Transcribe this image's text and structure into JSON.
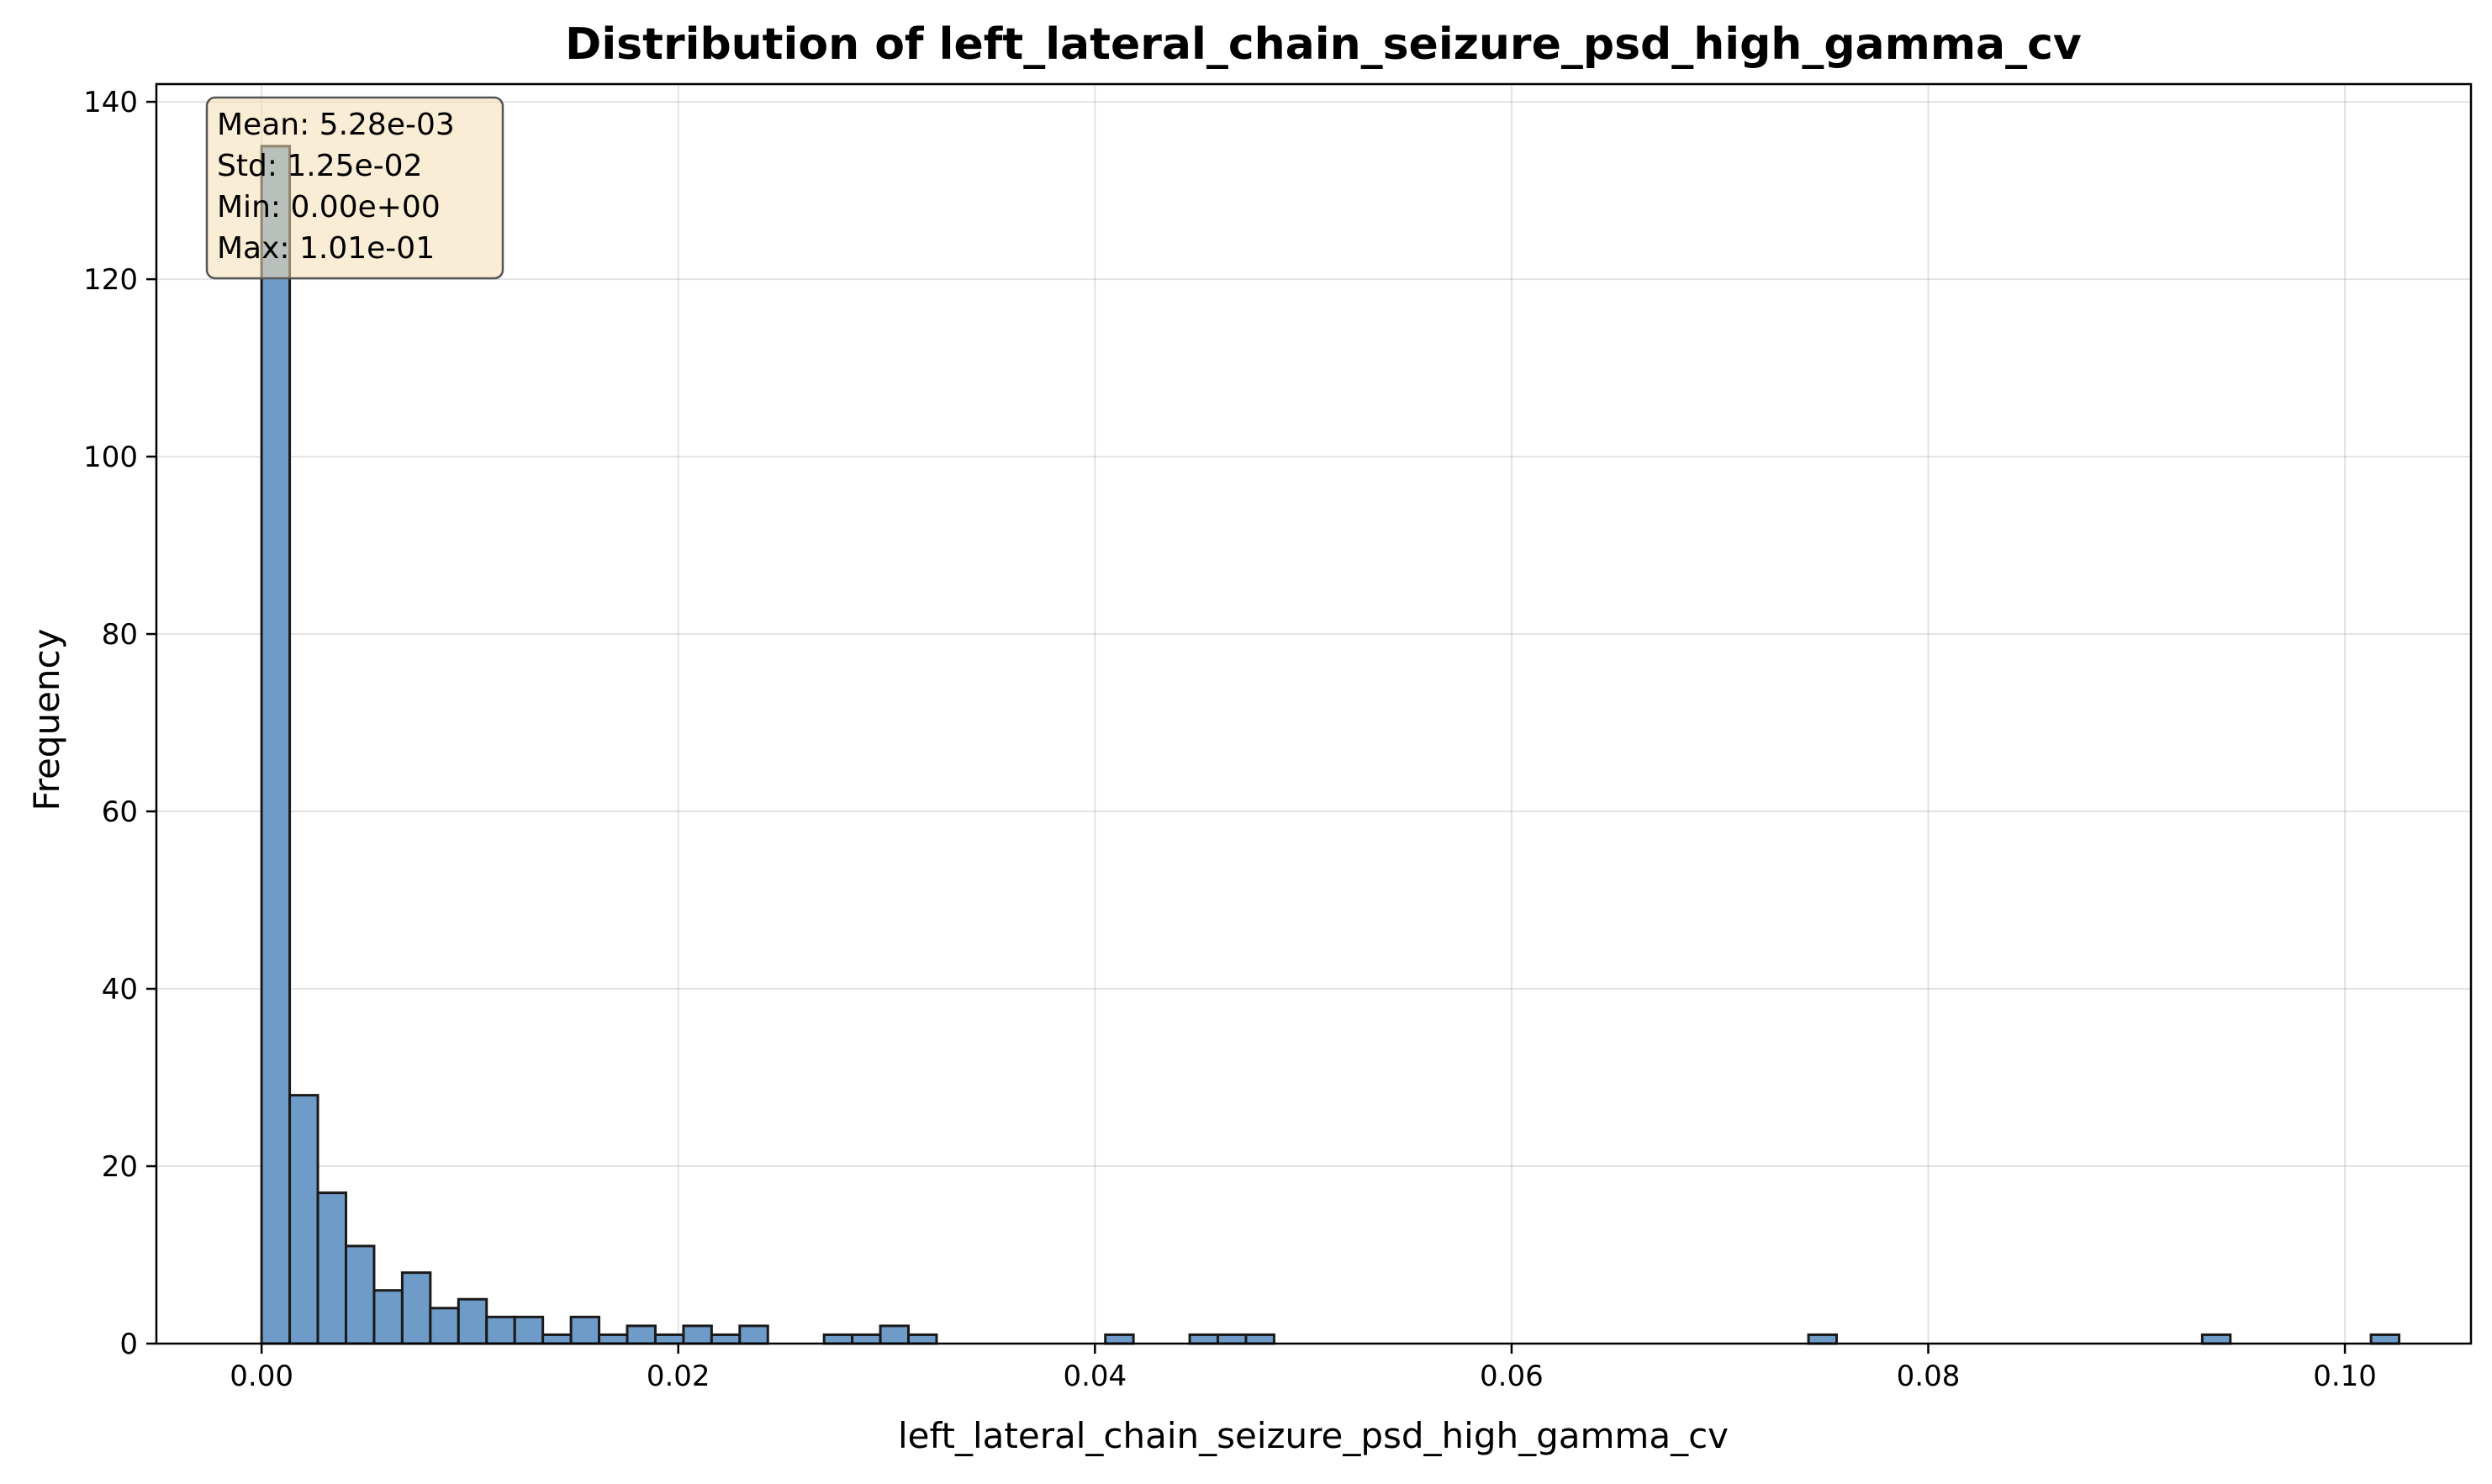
{
  "chart_data": {
    "type": "bar",
    "title": "Distribution of left_lateral_chain_seizure_psd_high_gamma_cv",
    "xlabel": "left_lateral_chain_seizure_psd_high_gamma_cv",
    "ylabel": "Frequency",
    "xlim": [
      -0.00505,
      0.10605
    ],
    "ylim": [
      0,
      142
    ],
    "xticks": [
      0.0,
      0.02,
      0.04,
      0.06,
      0.08,
      0.1
    ],
    "xtick_labels": [
      "0.00",
      "0.02",
      "0.04",
      "0.06",
      "0.08",
      "0.10"
    ],
    "yticks": [
      0,
      20,
      40,
      60,
      80,
      100,
      120,
      140
    ],
    "ytick_labels": [
      "0",
      "20",
      "40",
      "60",
      "80",
      "100",
      "120",
      "140"
    ],
    "bin_start": 0.0,
    "bin_width": 0.00135,
    "values": [
      135,
      28,
      17,
      11,
      6,
      8,
      4,
      5,
      3,
      3,
      1,
      3,
      1,
      2,
      1,
      2,
      1,
      2,
      0,
      0,
      1,
      1,
      2,
      1,
      0,
      0,
      0,
      0,
      0,
      0,
      1,
      0,
      0,
      1,
      1,
      1,
      0,
      0,
      0,
      0,
      0,
      0,
      0,
      0,
      0,
      0,
      0,
      0,
      0,
      0,
      0,
      0,
      0,
      0,
      0,
      1,
      0,
      0,
      0,
      0,
      0,
      0,
      0,
      0,
      0,
      0,
      0,
      0,
      0,
      1,
      0,
      0,
      0,
      0,
      0,
      1
    ],
    "grid": true,
    "bar_color": "#6f9bc8",
    "bar_edge_color": "#1a1a1a",
    "stats_box": {
      "lines": [
        "Mean: 5.28e-03",
        "Std: 1.25e-02",
        "Min: 0.00e+00",
        "Max: 1.01e-01"
      ],
      "placement": "top-left",
      "background": "#f5deb3"
    }
  }
}
